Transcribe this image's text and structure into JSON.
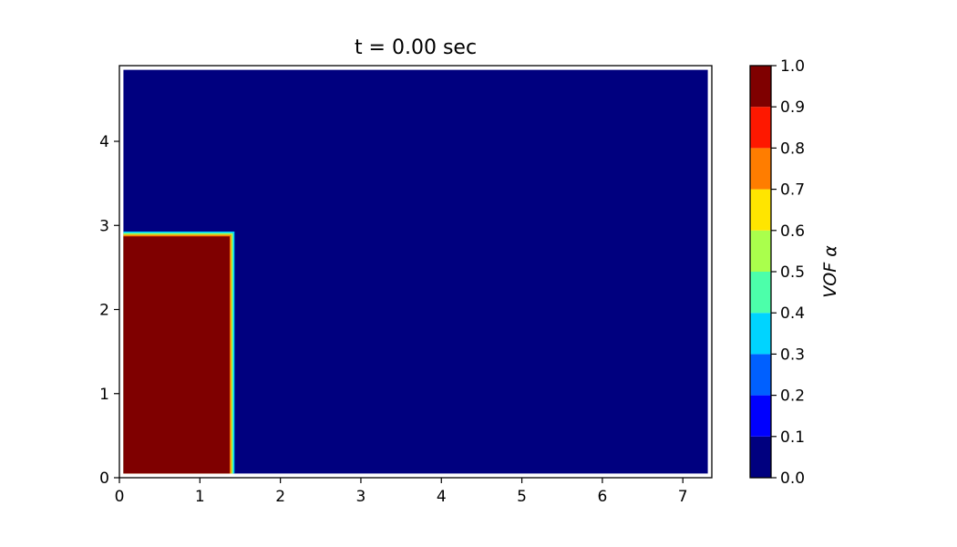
{
  "chart_data": {
    "type": "heatmap",
    "title": "t = 0.00 sec",
    "xlabel": "",
    "ylabel": "",
    "xlim": [
      0,
      7.36
    ],
    "ylim": [
      0,
      4.9
    ],
    "x_ticks": [
      "0",
      "1",
      "2",
      "3",
      "4",
      "5",
      "6",
      "7"
    ],
    "y_ticks": [
      "0",
      "1",
      "2",
      "3",
      "4"
    ],
    "field": {
      "domain": {
        "x": [
          0.05,
          7.31
        ],
        "y": [
          0.05,
          4.85
        ]
      },
      "background_value": 0.0,
      "region": {
        "x": [
          0.05,
          1.37
        ],
        "y": [
          0.05,
          2.87
        ],
        "value": 1.0
      },
      "interface_width": 0.06
    },
    "colorbar": {
      "label": "VOF α",
      "range": [
        0.0,
        1.0
      ],
      "tick_labels": [
        "0.0",
        "0.1",
        "0.2",
        "0.3",
        "0.4",
        "0.5",
        "0.6",
        "0.7",
        "0.8",
        "0.9",
        "1.0"
      ],
      "levels": [
        {
          "from": 0.0,
          "to": 0.1,
          "color": "#00007f"
        },
        {
          "from": 0.1,
          "to": 0.2,
          "color": "#0000fe"
        },
        {
          "from": 0.2,
          "to": 0.3,
          "color": "#0060ff"
        },
        {
          "from": 0.3,
          "to": 0.4,
          "color": "#00d4ff"
        },
        {
          "from": 0.4,
          "to": 0.5,
          "color": "#4cffaa"
        },
        {
          "from": 0.5,
          "to": 0.6,
          "color": "#aaff4c"
        },
        {
          "from": 0.6,
          "to": 0.7,
          "color": "#ffe500"
        },
        {
          "from": 0.7,
          "to": 0.8,
          "color": "#ff7d00"
        },
        {
          "from": 0.8,
          "to": 0.9,
          "color": "#fe1800"
        },
        {
          "from": 0.9,
          "to": 1.0,
          "color": "#7f0000"
        }
      ]
    },
    "grid": false
  }
}
